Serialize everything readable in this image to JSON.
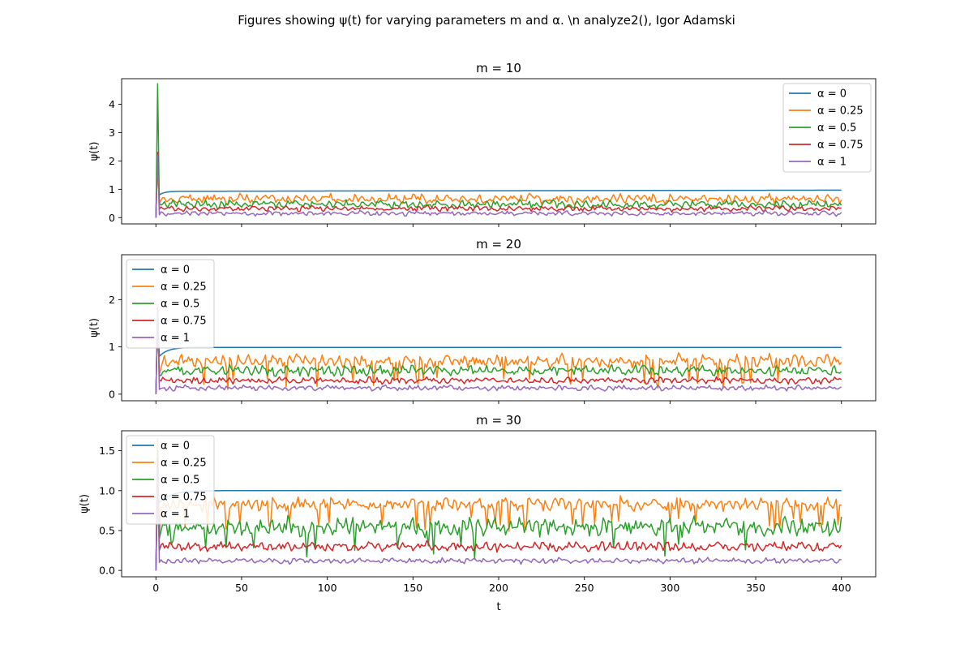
{
  "figure": {
    "suptitle": "Figures showing ψ(t) for varying parameters m and α. \\n analyze2(), Igor Adamski"
  },
  "chart_data": [
    {
      "type": "line",
      "title": "m = 10",
      "ylabel": "ψ(t)",
      "xlabel": "",
      "xlim": [
        -20,
        420
      ],
      "ylim": [
        -0.22,
        4.9
      ],
      "xticks": [
        0,
        50,
        100,
        150,
        200,
        250,
        300,
        350,
        400
      ],
      "xtick_labels_visible": false,
      "yticks": [
        0,
        1,
        2,
        3,
        4
      ],
      "ytick_labels": [
        "0",
        "1",
        "2",
        "3",
        "4"
      ],
      "legend": "top-right",
      "series": [
        {
          "name": "α = 0",
          "color": "#1f77b4",
          "peak": 2.2,
          "settle": 0.93,
          "amp": 0.0,
          "start": 0.8,
          "rise": 0.9
        },
        {
          "name": "α = 0.25",
          "color": "#ff7f0e",
          "peak": 2.0,
          "settle": 0.66,
          "amp": 0.24,
          "start": 0.5,
          "rise": 0.15
        },
        {
          "name": "α = 0.5",
          "color": "#2ca02c",
          "peak": 4.72,
          "settle": 0.47,
          "amp": 0.2,
          "start": 0.5,
          "rise": 0.1
        },
        {
          "name": "α = 0.75",
          "color": "#d62728",
          "peak": 2.3,
          "settle": 0.32,
          "amp": 0.14,
          "start": 0.3,
          "rise": 0.1
        },
        {
          "name": "α = 1",
          "color": "#9467bd",
          "peak": 2.2,
          "settle": 0.15,
          "amp": 0.12,
          "start": 0.1,
          "rise": 0.1
        }
      ]
    },
    {
      "type": "line",
      "title": "m = 20",
      "ylabel": "ψ(t)",
      "xlabel": "",
      "xlim": [
        -20,
        420
      ],
      "ylim": [
        -0.14,
        2.95
      ],
      "xticks": [
        0,
        50,
        100,
        150,
        200,
        250,
        300,
        350,
        400
      ],
      "xtick_labels_visible": false,
      "yticks": [
        0,
        1,
        2
      ],
      "ytick_labels": [
        "0",
        "1",
        "2"
      ],
      "legend": "top-left",
      "series": [
        {
          "name": "α = 0",
          "color": "#1f77b4",
          "peak": 1.8,
          "settle": 0.99,
          "amp": 0.0,
          "start": 0.8,
          "rise": 0.9
        },
        {
          "name": "α = 0.25",
          "color": "#ff7f0e",
          "peak": 1.9,
          "settle": 0.7,
          "amp": 0.2,
          "start": 0.4,
          "rise": 0.15
        },
        {
          "name": "α = 0.5",
          "color": "#2ca02c",
          "peak": 1.7,
          "settle": 0.5,
          "amp": 0.16,
          "start": 0.4,
          "rise": 0.1
        },
        {
          "name": "α = 0.75",
          "color": "#d62728",
          "peak": 1.8,
          "settle": 0.29,
          "amp": 0.1,
          "start": 0.3,
          "rise": 0.1
        },
        {
          "name": "α = 1",
          "color": "#9467bd",
          "peak": 1.8,
          "settle": 0.13,
          "amp": 0.08,
          "start": 0.1,
          "rise": 0.1
        }
      ]
    },
    {
      "type": "line",
      "title": "m = 30",
      "ylabel": "ψ(t)",
      "xlabel": "t",
      "xlim": [
        -20,
        420
      ],
      "ylim": [
        -0.08,
        1.75
      ],
      "xticks": [
        0,
        50,
        100,
        150,
        200,
        250,
        300,
        350,
        400
      ],
      "xtick_labels": [
        "0",
        "50",
        "100",
        "150",
        "200",
        "250",
        "300",
        "350",
        "400"
      ],
      "yticks": [
        0.0,
        0.5,
        1.0,
        1.5
      ],
      "ytick_labels": [
        "0.0",
        "0.5",
        "1.0",
        "1.5"
      ],
      "legend": "top-left",
      "series": [
        {
          "name": "α = 0",
          "color": "#1f77b4",
          "peak": 1.0,
          "settle": 1.0,
          "amp": 0.0,
          "start": 0.85,
          "rise": 0.9
        },
        {
          "name": "α = 0.25",
          "color": "#ff7f0e",
          "peak": 1.65,
          "settle": 0.83,
          "amp": 0.12,
          "start": 0.4,
          "rise": 0.15
        },
        {
          "name": "α = 0.5",
          "color": "#2ca02c",
          "peak": 1.5,
          "settle": 0.55,
          "amp": 0.17,
          "start": 0.4,
          "rise": 0.1
        },
        {
          "name": "α = 0.75",
          "color": "#d62728",
          "peak": 1.4,
          "settle": 0.3,
          "amp": 0.09,
          "start": 0.25,
          "rise": 0.1
        },
        {
          "name": "α = 1",
          "color": "#9467bd",
          "peak": 1.3,
          "settle": 0.12,
          "amp": 0.05,
          "start": 0.1,
          "rise": 0.1
        }
      ]
    }
  ]
}
